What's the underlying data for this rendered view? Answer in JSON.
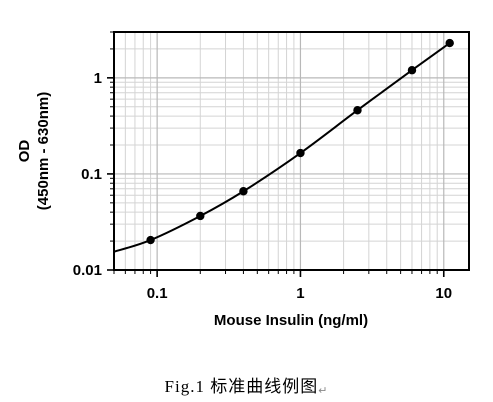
{
  "chart_data": {
    "type": "line",
    "xlabel": "Mouse Insulin (ng/ml)",
    "ylabel_line1": "OD",
    "ylabel_line2": "(450nm - 630nm)",
    "xscale": "log",
    "yscale": "log",
    "xlim": [
      0.05,
      15
    ],
    "ylim": [
      0.01,
      3
    ],
    "x_ticks": [
      0.1,
      1,
      10
    ],
    "x_tick_labels": [
      "0.1",
      "1",
      "10"
    ],
    "y_ticks": [
      0.01,
      0.1,
      1
    ],
    "y_tick_labels": [
      "0.01",
      "0.1",
      "1"
    ],
    "grid": true,
    "series": [
      {
        "points": [
          {
            "x": 0.09,
            "y": 0.0205
          },
          {
            "x": 0.2,
            "y": 0.0365
          },
          {
            "x": 0.4,
            "y": 0.066
          },
          {
            "x": 1,
            "y": 0.165
          },
          {
            "x": 2.5,
            "y": 0.46
          },
          {
            "x": 6,
            "y": 1.2
          },
          {
            "x": 11,
            "y": 2.3
          }
        ],
        "curve": [
          {
            "x": 0.05,
            "y": 0.0155
          },
          {
            "x": 0.09,
            "y": 0.0205
          },
          {
            "x": 0.2,
            "y": 0.0365
          },
          {
            "x": 0.4,
            "y": 0.066
          },
          {
            "x": 1,
            "y": 0.165
          },
          {
            "x": 2.5,
            "y": 0.46
          },
          {
            "x": 6,
            "y": 1.2
          },
          {
            "x": 11,
            "y": 2.3
          }
        ]
      }
    ]
  },
  "caption": {
    "text": "Fig.1 标准曲线例图",
    "mark": "↵"
  }
}
